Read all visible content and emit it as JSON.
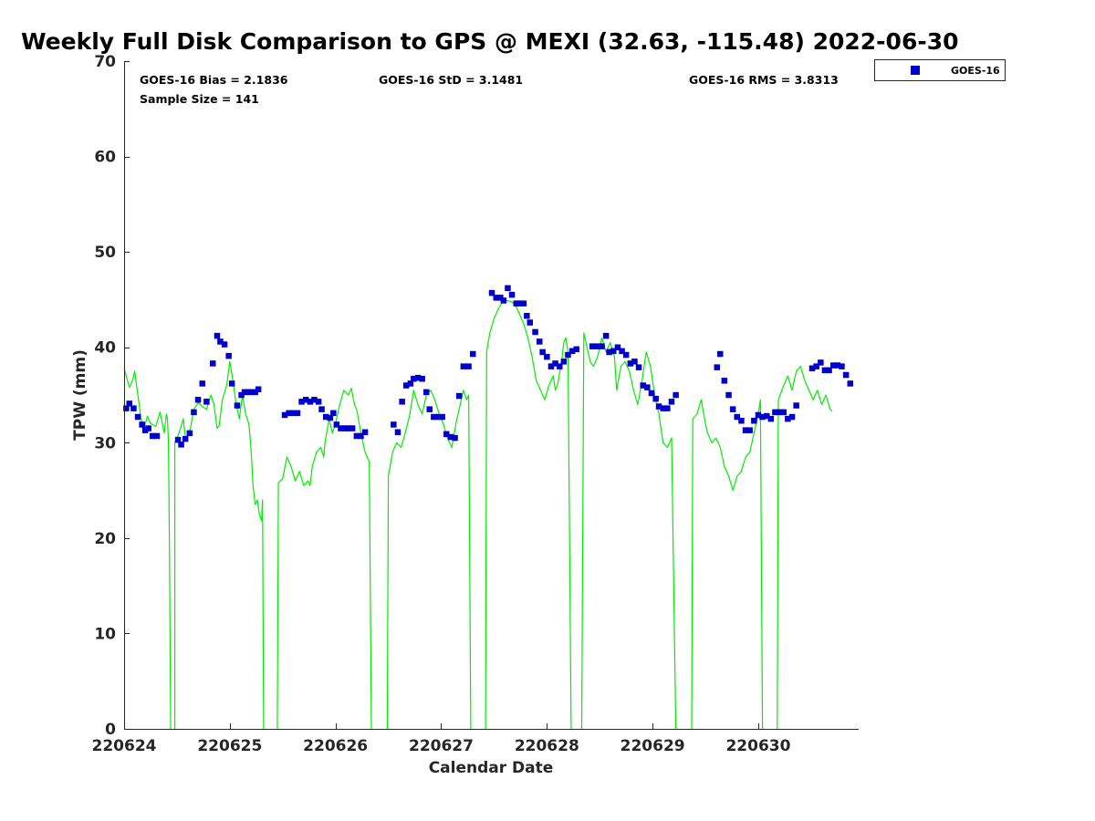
{
  "chart_data": {
    "type": "line+scatter",
    "title": "Weekly Full Disk Comparison to GPS @ MEXI (32.63, -115.48) 2022-06-30",
    "xlabel": "Calendar Date",
    "ylabel": "TPW (mm)",
    "xlim": [
      0,
      6.95
    ],
    "ylim": [
      0,
      70
    ],
    "x_ticks": [
      0,
      1,
      2,
      3,
      4,
      5,
      6
    ],
    "x_tick_labels": [
      "220624",
      "220625",
      "220626",
      "220627",
      "220628",
      "220629",
      "220630"
    ],
    "y_ticks": [
      0,
      10,
      20,
      30,
      40,
      50,
      60,
      70
    ],
    "y_tick_labels": [
      "0",
      "10",
      "20",
      "30",
      "40",
      "50",
      "60",
      "70"
    ],
    "stats": {
      "bias": "GOES-16 Bias = 2.1836",
      "std": "GOES-16 StD = 3.1481",
      "rms": "GOES-16 RMS = 3.8313",
      "sample": "Sample Size = 141"
    },
    "legend": {
      "label": "GOES-16",
      "color": "#0000cc",
      "position": "top-right outside"
    },
    "gps_series": {
      "name": "GPS",
      "color": "#00ee00",
      "segments": [
        [
          [
            0.0,
            37.8
          ],
          [
            0.05,
            35.8
          ],
          [
            0.08,
            36.5
          ],
          [
            0.1,
            37.5
          ],
          [
            0.13,
            35.0
          ],
          [
            0.16,
            32.5
          ],
          [
            0.19,
            31.5
          ],
          [
            0.22,
            32.8
          ],
          [
            0.25,
            32.0
          ],
          [
            0.3,
            31.7
          ],
          [
            0.34,
            33.2
          ],
          [
            0.38,
            31.0
          ],
          [
            0.4,
            33.0
          ],
          [
            0.41,
            32.5
          ],
          [
            0.42,
            30.0
          ],
          [
            0.43,
            18.0
          ],
          [
            0.44,
            0
          ]
        ],
        [
          [
            0.48,
            0
          ],
          [
            0.48,
            30.0
          ],
          [
            0.52,
            31.0
          ],
          [
            0.56,
            32.5
          ],
          [
            0.58,
            30.5
          ],
          [
            0.62,
            31.0
          ],
          [
            0.66,
            33.5
          ],
          [
            0.7,
            34.2
          ],
          [
            0.74,
            33.8
          ],
          [
            0.78,
            33.5
          ],
          [
            0.82,
            35.0
          ],
          [
            0.85,
            34.0
          ],
          [
            0.88,
            31.5
          ],
          [
            0.9,
            31.8
          ],
          [
            0.93,
            34.5
          ],
          [
            0.97,
            36.0
          ],
          [
            1.0,
            38.5
          ],
          [
            1.03,
            36.5
          ],
          [
            1.06,
            34.0
          ],
          [
            1.09,
            32.5
          ],
          [
            1.12,
            35.0
          ],
          [
            1.15,
            33.0
          ],
          [
            1.18,
            32.0
          ],
          [
            1.2,
            29.5
          ],
          [
            1.22,
            25.5
          ],
          [
            1.24,
            23.5
          ],
          [
            1.26,
            24.0
          ],
          [
            1.28,
            22.5
          ],
          [
            1.3,
            21.8
          ],
          [
            1.31,
            24.0
          ],
          [
            1.32,
            0
          ]
        ],
        [
          [
            1.45,
            0
          ],
          [
            1.46,
            25.8
          ],
          [
            1.5,
            26.2
          ],
          [
            1.54,
            28.5
          ],
          [
            1.58,
            27.5
          ],
          [
            1.62,
            26.0
          ],
          [
            1.66,
            27.0
          ],
          [
            1.7,
            25.5
          ],
          [
            1.74,
            26.0
          ],
          [
            1.76,
            25.5
          ],
          [
            1.78,
            27.5
          ],
          [
            1.82,
            29.0
          ],
          [
            1.86,
            29.5
          ],
          [
            1.89,
            28.5
          ],
          [
            1.9,
            30.0
          ],
          [
            1.94,
            32.5
          ],
          [
            1.97,
            31.0
          ],
          [
            2.0,
            32.0
          ],
          [
            2.04,
            34.0
          ],
          [
            2.08,
            35.5
          ],
          [
            2.12,
            35.0
          ],
          [
            2.15,
            35.7
          ],
          [
            2.18,
            34.0
          ],
          [
            2.2,
            33.5
          ],
          [
            2.24,
            31.0
          ],
          [
            2.28,
            29.0
          ],
          [
            2.32,
            28.0
          ],
          [
            2.34,
            0
          ]
        ],
        [
          [
            2.49,
            0
          ],
          [
            2.5,
            26.5
          ],
          [
            2.54,
            29.0
          ],
          [
            2.58,
            30.0
          ],
          [
            2.62,
            29.5
          ],
          [
            2.66,
            31.0
          ],
          [
            2.7,
            32.8
          ],
          [
            2.74,
            35.5
          ],
          [
            2.78,
            34.0
          ],
          [
            2.82,
            33.0
          ],
          [
            2.86,
            35.0
          ],
          [
            2.9,
            35.5
          ],
          [
            2.94,
            34.5
          ],
          [
            2.98,
            33.0
          ],
          [
            3.02,
            32.0
          ],
          [
            3.06,
            30.5
          ],
          [
            3.1,
            29.5
          ],
          [
            3.14,
            32.0
          ],
          [
            3.18,
            34.0
          ],
          [
            3.21,
            35.5
          ],
          [
            3.24,
            34.5
          ],
          [
            3.26,
            35.0
          ],
          [
            3.28,
            0
          ]
        ],
        [
          [
            3.42,
            0
          ],
          [
            3.43,
            39.5
          ],
          [
            3.46,
            41.5
          ],
          [
            3.5,
            43.0
          ],
          [
            3.54,
            44.0
          ],
          [
            3.58,
            44.8
          ],
          [
            3.62,
            44.9
          ],
          [
            3.66,
            44.8
          ],
          [
            3.7,
            44.5
          ],
          [
            3.74,
            43.5
          ],
          [
            3.78,
            42.5
          ],
          [
            3.82,
            41.0
          ],
          [
            3.86,
            39.0
          ],
          [
            3.9,
            36.5
          ],
          [
            3.94,
            35.5
          ],
          [
            3.98,
            34.5
          ],
          [
            4.02,
            36.0
          ],
          [
            4.06,
            37.0
          ],
          [
            4.08,
            35.5
          ],
          [
            4.1,
            36.0
          ],
          [
            4.14,
            38.5
          ],
          [
            4.16,
            40.5
          ],
          [
            4.18,
            41.0
          ],
          [
            4.2,
            39.5
          ],
          [
            4.23,
            0
          ]
        ],
        [
          [
            4.33,
            0
          ],
          [
            4.35,
            41.5
          ],
          [
            4.38,
            40.0
          ],
          [
            4.41,
            38.5
          ],
          [
            4.44,
            38.0
          ],
          [
            4.48,
            39.0
          ],
          [
            4.52,
            41.0
          ],
          [
            4.56,
            39.5
          ],
          [
            4.6,
            40.5
          ],
          [
            4.64,
            39.0
          ],
          [
            4.66,
            35.5
          ],
          [
            4.7,
            38.0
          ],
          [
            4.74,
            38.5
          ],
          [
            4.78,
            37.5
          ],
          [
            4.82,
            35.5
          ],
          [
            4.86,
            34.0
          ],
          [
            4.9,
            36.5
          ],
          [
            4.94,
            39.5
          ],
          [
            4.98,
            38.0
          ],
          [
            5.02,
            35.0
          ],
          [
            5.06,
            33.0
          ],
          [
            5.1,
            30.0
          ],
          [
            5.14,
            29.5
          ],
          [
            5.18,
            30.5
          ],
          [
            5.22,
            0
          ]
        ],
        [
          [
            5.37,
            0
          ],
          [
            5.38,
            32.5
          ],
          [
            5.42,
            33.0
          ],
          [
            5.46,
            34.5
          ],
          [
            5.5,
            32.0
          ],
          [
            5.52,
            31.0
          ],
          [
            5.56,
            30.0
          ],
          [
            5.6,
            30.5
          ],
          [
            5.64,
            29.5
          ],
          [
            5.68,
            27.5
          ],
          [
            5.72,
            26.5
          ],
          [
            5.76,
            25.0
          ],
          [
            5.8,
            26.5
          ],
          [
            5.84,
            27.0
          ],
          [
            5.88,
            28.5
          ],
          [
            5.92,
            29.0
          ],
          [
            5.96,
            31.0
          ],
          [
            6.0,
            33.0
          ],
          [
            6.02,
            34.5
          ],
          [
            6.04,
            0
          ]
        ],
        [
          [
            6.18,
            0
          ],
          [
            6.19,
            34.5
          ],
          [
            6.24,
            36.0
          ],
          [
            6.28,
            37.0
          ],
          [
            6.32,
            35.5
          ],
          [
            6.36,
            37.5
          ],
          [
            6.4,
            38.0
          ],
          [
            6.44,
            36.5
          ],
          [
            6.48,
            35.5
          ],
          [
            6.52,
            34.5
          ],
          [
            6.56,
            35.5
          ],
          [
            6.6,
            34.0
          ],
          [
            6.64,
            35.0
          ],
          [
            6.68,
            33.5
          ],
          [
            6.7,
            33.3
          ]
        ]
      ]
    },
    "goes_series": {
      "name": "GOES-16",
      "color": "#0000cc",
      "points": [
        [
          0.02,
          33.6
        ],
        [
          0.05,
          34.1
        ],
        [
          0.09,
          33.6
        ],
        [
          0.13,
          32.7
        ],
        [
          0.17,
          31.9
        ],
        [
          0.2,
          31.3
        ],
        [
          0.23,
          31.5
        ],
        [
          0.27,
          30.7
        ],
        [
          0.31,
          30.7
        ],
        [
          0.51,
          30.3
        ],
        [
          0.54,
          29.8
        ],
        [
          0.58,
          30.4
        ],
        [
          0.62,
          31.0
        ],
        [
          0.66,
          33.2
        ],
        [
          0.7,
          34.5
        ],
        [
          0.74,
          36.2
        ],
        [
          0.78,
          34.3
        ],
        [
          0.84,
          38.3
        ],
        [
          0.88,
          41.2
        ],
        [
          0.91,
          40.6
        ],
        [
          0.95,
          40.3
        ],
        [
          0.99,
          39.1
        ],
        [
          1.02,
          36.2
        ],
        [
          1.07,
          33.9
        ],
        [
          1.11,
          35.0
        ],
        [
          1.14,
          35.3
        ],
        [
          1.17,
          35.3
        ],
        [
          1.2,
          35.3
        ],
        [
          1.24,
          35.3
        ],
        [
          1.27,
          35.6
        ],
        [
          1.52,
          32.9
        ],
        [
          1.56,
          33.1
        ],
        [
          1.6,
          33.1
        ],
        [
          1.64,
          33.1
        ],
        [
          1.68,
          34.3
        ],
        [
          1.72,
          34.5
        ],
        [
          1.76,
          34.3
        ],
        [
          1.8,
          34.5
        ],
        [
          1.84,
          34.3
        ],
        [
          1.87,
          33.5
        ],
        [
          1.91,
          32.7
        ],
        [
          1.95,
          32.6
        ],
        [
          1.98,
          33.1
        ],
        [
          2.01,
          31.9
        ],
        [
          2.05,
          31.5
        ],
        [
          2.09,
          31.5
        ],
        [
          2.12,
          31.5
        ],
        [
          2.16,
          31.5
        ],
        [
          2.2,
          30.7
        ],
        [
          2.24,
          30.7
        ],
        [
          2.28,
          31.1
        ],
        [
          2.55,
          31.9
        ],
        [
          2.59,
          31.1
        ],
        [
          2.63,
          34.3
        ],
        [
          2.67,
          36.0
        ],
        [
          2.71,
          36.2
        ],
        [
          2.74,
          36.7
        ],
        [
          2.78,
          36.8
        ],
        [
          2.82,
          36.7
        ],
        [
          2.86,
          35.3
        ],
        [
          2.89,
          33.5
        ],
        [
          2.93,
          32.7
        ],
        [
          2.97,
          32.7
        ],
        [
          3.01,
          32.7
        ],
        [
          3.05,
          30.9
        ],
        [
          3.09,
          30.6
        ],
        [
          3.13,
          30.5
        ],
        [
          3.17,
          34.9
        ],
        [
          3.21,
          38.0
        ],
        [
          3.26,
          38.0
        ],
        [
          3.3,
          39.3
        ],
        [
          3.48,
          45.7
        ],
        [
          3.52,
          45.2
        ],
        [
          3.56,
          45.2
        ],
        [
          3.59,
          44.9
        ],
        [
          3.63,
          46.2
        ],
        [
          3.67,
          45.5
        ],
        [
          3.71,
          44.6
        ],
        [
          3.74,
          44.6
        ],
        [
          3.78,
          44.6
        ],
        [
          3.81,
          43.3
        ],
        [
          3.84,
          42.6
        ],
        [
          3.89,
          41.6
        ],
        [
          3.93,
          40.6
        ],
        [
          3.96,
          39.5
        ],
        [
          4.0,
          39.0
        ],
        [
          4.04,
          38.0
        ],
        [
          4.08,
          38.3
        ],
        [
          4.12,
          38.0
        ],
        [
          4.16,
          38.5
        ],
        [
          4.2,
          39.2
        ],
        [
          4.24,
          39.6
        ],
        [
          4.28,
          39.8
        ],
        [
          4.43,
          40.1
        ],
        [
          4.48,
          40.1
        ],
        [
          4.52,
          40.1
        ],
        [
          4.56,
          41.2
        ],
        [
          4.59,
          39.5
        ],
        [
          4.63,
          39.6
        ],
        [
          4.67,
          40.0
        ],
        [
          4.71,
          39.6
        ],
        [
          4.75,
          39.2
        ],
        [
          4.79,
          38.3
        ],
        [
          4.83,
          38.5
        ],
        [
          4.87,
          37.9
        ],
        [
          4.91,
          36.0
        ],
        [
          4.95,
          35.8
        ],
        [
          4.99,
          35.2
        ],
        [
          5.03,
          34.6
        ],
        [
          5.06,
          33.8
        ],
        [
          5.1,
          33.6
        ],
        [
          5.14,
          33.6
        ],
        [
          5.18,
          34.3
        ],
        [
          5.22,
          35.0
        ],
        [
          5.61,
          37.9
        ],
        [
          5.64,
          39.3
        ],
        [
          5.68,
          36.5
        ],
        [
          5.72,
          35.0
        ],
        [
          5.76,
          33.5
        ],
        [
          5.8,
          32.7
        ],
        [
          5.84,
          32.3
        ],
        [
          5.88,
          31.3
        ],
        [
          5.92,
          31.3
        ],
        [
          5.96,
          32.3
        ],
        [
          6.0,
          32.9
        ],
        [
          6.04,
          32.7
        ],
        [
          6.08,
          32.8
        ],
        [
          6.12,
          32.5
        ],
        [
          6.16,
          33.2
        ],
        [
          6.2,
          33.2
        ],
        [
          6.24,
          33.2
        ],
        [
          6.28,
          32.5
        ],
        [
          6.32,
          32.7
        ],
        [
          6.36,
          33.9
        ],
        [
          6.51,
          37.8
        ],
        [
          6.55,
          38.0
        ],
        [
          6.59,
          38.4
        ],
        [
          6.63,
          37.6
        ],
        [
          6.67,
          37.6
        ],
        [
          6.71,
          38.1
        ],
        [
          6.75,
          38.1
        ],
        [
          6.79,
          38.0
        ],
        [
          6.83,
          37.1
        ],
        [
          6.87,
          36.2
        ]
      ]
    }
  }
}
